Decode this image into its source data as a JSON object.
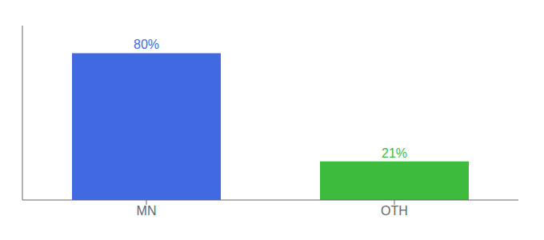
{
  "chart_data": {
    "type": "bar",
    "categories": [
      "MN",
      "OTH"
    ],
    "values": [
      80,
      21
    ],
    "value_labels": [
      "80%",
      "21%"
    ],
    "colors": [
      "#4169e1",
      "#3dbb3d"
    ],
    "ylim": [
      0,
      95
    ],
    "data_labels": true,
    "tick_labels": "x",
    "grid": false
  }
}
